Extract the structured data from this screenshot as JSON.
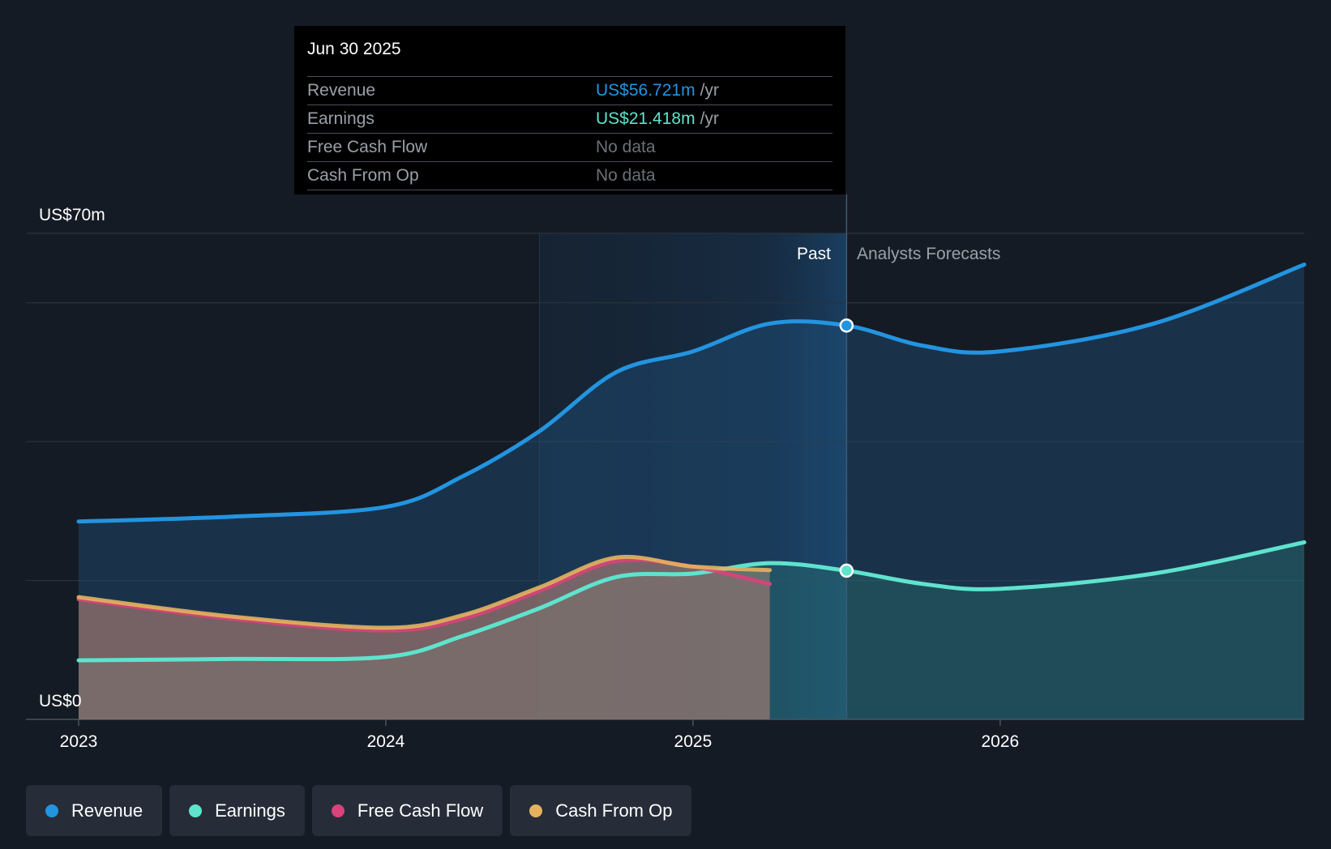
{
  "colors": {
    "revenue": "#2394e0",
    "earnings": "#5fe3cd",
    "free_cash_flow": "#d9427a",
    "cash_from_op": "#e6b25e",
    "grid": "#2a323d",
    "axis_text": "#ffffff",
    "muted_text": "#9aa0a8"
  },
  "tooltip": {
    "date": "Jun 30 2025",
    "rows": [
      {
        "label": "Revenue",
        "value": "US$56.721m",
        "unit": "/yr",
        "color": "#2394e0"
      },
      {
        "label": "Earnings",
        "value": "US$21.418m",
        "unit": "/yr",
        "color": "#5fe3cd"
      },
      {
        "label": "Free Cash Flow",
        "value": "No data",
        "unit": ""
      },
      {
        "label": "Cash From Op",
        "value": "No data",
        "unit": ""
      }
    ]
  },
  "chart_data": {
    "type": "area",
    "y_unit_labels": {
      "top": "US$70m",
      "bottom": "US$0"
    },
    "ylim": [
      0,
      70
    ],
    "xlim": [
      2022.83,
      2026.99
    ],
    "x_ticks": [
      {
        "value": 2023,
        "label": "2023"
      },
      {
        "value": 2024,
        "label": "2024"
      },
      {
        "value": 2025,
        "label": "2025"
      },
      {
        "value": 2026,
        "label": "2026"
      }
    ],
    "gridlines": [
      0,
      20,
      40,
      60,
      70
    ],
    "highlight_range": [
      2024.5,
      2025.5
    ],
    "divider_x": 2025.5,
    "divider_labels": {
      "past": "Past",
      "forecast": "Analysts Forecasts"
    },
    "series": [
      {
        "name": "Revenue",
        "key": "revenue",
        "points": [
          [
            2023.0,
            28.5
          ],
          [
            2023.5,
            29.2
          ],
          [
            2024.0,
            30.6
          ],
          [
            2024.25,
            35.0
          ],
          [
            2024.5,
            41.5
          ],
          [
            2024.75,
            50.0
          ],
          [
            2025.0,
            53.0
          ],
          [
            2025.25,
            57.0
          ],
          [
            2025.5,
            56.721
          ],
          [
            2025.75,
            53.8
          ],
          [
            2026.0,
            53.0
          ],
          [
            2026.5,
            57.0
          ],
          [
            2026.99,
            65.5
          ]
        ]
      },
      {
        "name": "Earnings",
        "key": "earnings",
        "points": [
          [
            2023.0,
            8.5
          ],
          [
            2023.5,
            8.7
          ],
          [
            2024.0,
            9.0
          ],
          [
            2024.25,
            12.0
          ],
          [
            2024.5,
            16.0
          ],
          [
            2024.75,
            20.5
          ],
          [
            2025.0,
            21.0
          ],
          [
            2025.25,
            22.5
          ],
          [
            2025.5,
            21.418
          ],
          [
            2025.75,
            19.5
          ],
          [
            2026.0,
            18.8
          ],
          [
            2026.5,
            21.0
          ],
          [
            2026.99,
            25.5
          ]
        ]
      },
      {
        "name": "Free Cash Flow",
        "key": "free_cash_flow",
        "points": [
          [
            2023.0,
            17.3
          ],
          [
            2023.5,
            14.5
          ],
          [
            2024.0,
            12.8
          ],
          [
            2024.25,
            14.5
          ],
          [
            2024.5,
            18.5
          ],
          [
            2024.75,
            22.8
          ],
          [
            2025.0,
            22.0
          ],
          [
            2025.25,
            19.5
          ]
        ]
      },
      {
        "name": "Cash From Op",
        "key": "cash_from_op",
        "points": [
          [
            2023.0,
            17.6
          ],
          [
            2023.5,
            14.8
          ],
          [
            2024.0,
            13.2
          ],
          [
            2024.25,
            15.0
          ],
          [
            2024.5,
            19.0
          ],
          [
            2024.75,
            23.3
          ],
          [
            2025.0,
            22.0
          ],
          [
            2025.25,
            21.5
          ]
        ]
      }
    ],
    "markers": [
      {
        "series": "revenue",
        "x": 2025.5,
        "y": 56.721
      },
      {
        "series": "earnings",
        "x": 2025.5,
        "y": 21.418
      }
    ]
  },
  "legend": [
    {
      "label": "Revenue",
      "color": "#2394e0"
    },
    {
      "label": "Earnings",
      "color": "#5fe3cd"
    },
    {
      "label": "Free Cash Flow",
      "color": "#d9427a"
    },
    {
      "label": "Cash From Op",
      "color": "#e6b25e"
    }
  ]
}
